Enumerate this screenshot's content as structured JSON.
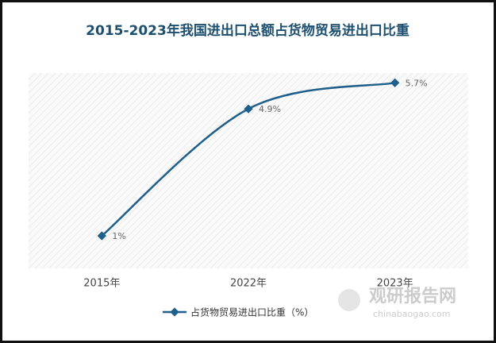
{
  "chart_data": {
    "type": "line",
    "title": "2015-2023年我国进出口总额占货物贸易进出口比重",
    "categories": [
      "2015年",
      "2022年",
      "2023年"
    ],
    "series": [
      {
        "name": "占货物贸易进出口比重（%）",
        "color": "#1f5f8b",
        "values": [
          1,
          4.9,
          5.7
        ],
        "value_labels": [
          "1%",
          "4.9%",
          "5.7%"
        ]
      }
    ],
    "ylim": [
      0,
      6
    ],
    "watermark": {
      "name": "观研报告网",
      "url": "chinabaogao.com"
    }
  }
}
